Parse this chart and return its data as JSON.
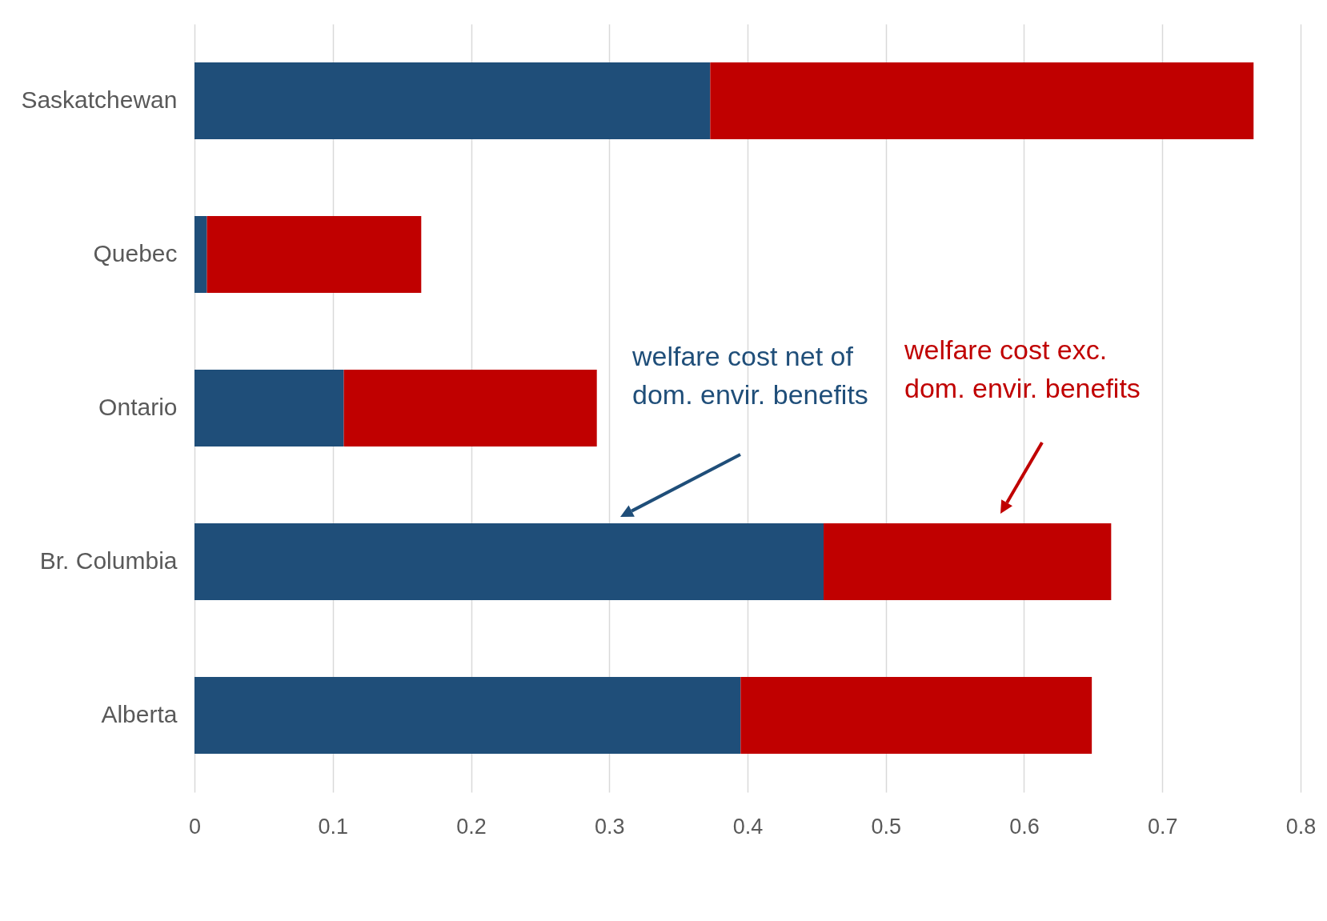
{
  "chart_data": {
    "type": "bar",
    "orientation": "horizontal",
    "stacked": true,
    "categories": [
      "Saskatchewan",
      "Quebec",
      "Ontario",
      "Br. Columbia",
      "Alberta"
    ],
    "series": [
      {
        "name": "welfare cost net of dom. envir. benefits",
        "color": "#1f4e79",
        "values": [
          0.373,
          0.009,
          0.108,
          0.455,
          0.395
        ]
      },
      {
        "name": "welfare cost exc. dom. envir. benefits",
        "color": "#c00000",
        "values": [
          0.393,
          0.155,
          0.183,
          0.208,
          0.254
        ]
      }
    ],
    "xlim": [
      0,
      0.8
    ],
    "xticks": [
      0,
      0.1,
      0.2,
      0.3,
      0.4,
      0.5,
      0.6,
      0.7,
      0.8
    ],
    "grid": "x",
    "legend": false
  }
}
